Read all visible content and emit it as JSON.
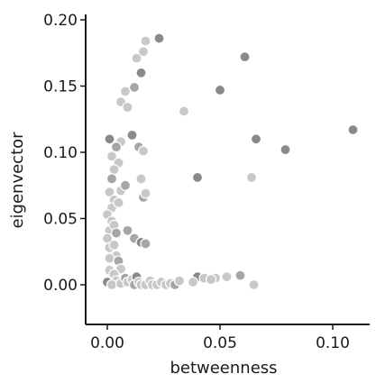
{
  "chart_data": {
    "type": "scatter",
    "xlabel": "betweenness",
    "ylabel": "eigenvector",
    "xlim": [
      -0.005,
      0.11
    ],
    "ylim": [
      -0.035,
      0.205
    ],
    "xticks": [
      0.0,
      0.05,
      0.1
    ],
    "xtick_labels": [
      "0.00",
      "0.05",
      "0.10"
    ],
    "yticks": [
      0.0,
      0.05,
      0.1,
      0.15,
      0.2
    ],
    "ytick_labels": [
      "0.00",
      "0.05",
      "0.10",
      "0.15",
      "0.20"
    ],
    "grid": false,
    "colors": {
      "axis": "#1a1a1a",
      "point_light": "#c8c8c8",
      "point_mid": "#a6a6a6",
      "point_dark": "#8a8a8a",
      "point_edge": "#ffffff"
    },
    "points": [
      {
        "x": 0.061,
        "y": 0.172,
        "shade": "dark"
      },
      {
        "x": 0.05,
        "y": 0.147,
        "shade": "dark"
      },
      {
        "x": 0.109,
        "y": 0.117,
        "shade": "dark"
      },
      {
        "x": 0.066,
        "y": 0.11,
        "shade": "dark"
      },
      {
        "x": 0.079,
        "y": 0.102,
        "shade": "dark"
      },
      {
        "x": 0.064,
        "y": 0.081,
        "shade": "light"
      },
      {
        "x": 0.04,
        "y": 0.081,
        "shade": "dark"
      },
      {
        "x": 0.034,
        "y": 0.131,
        "shade": "light"
      },
      {
        "x": 0.023,
        "y": 0.186,
        "shade": "dark"
      },
      {
        "x": 0.017,
        "y": 0.184,
        "shade": "light"
      },
      {
        "x": 0.016,
        "y": 0.176,
        "shade": "light"
      },
      {
        "x": 0.013,
        "y": 0.171,
        "shade": "light"
      },
      {
        "x": 0.015,
        "y": 0.16,
        "shade": "dark"
      },
      {
        "x": 0.012,
        "y": 0.149,
        "shade": "mid"
      },
      {
        "x": 0.008,
        "y": 0.146,
        "shade": "light"
      },
      {
        "x": 0.006,
        "y": 0.138,
        "shade": "light"
      },
      {
        "x": 0.009,
        "y": 0.134,
        "shade": "light"
      },
      {
        "x": 0.011,
        "y": 0.113,
        "shade": "dark"
      },
      {
        "x": 0.014,
        "y": 0.104,
        "shade": "mid"
      },
      {
        "x": 0.016,
        "y": 0.101,
        "shade": "light"
      },
      {
        "x": 0.006,
        "y": 0.108,
        "shade": "light"
      },
      {
        "x": 0.004,
        "y": 0.104,
        "shade": "mid"
      },
      {
        "x": 0.001,
        "y": 0.11,
        "shade": "dark"
      },
      {
        "x": 0.002,
        "y": 0.097,
        "shade": "light"
      },
      {
        "x": 0.005,
        "y": 0.092,
        "shade": "light"
      },
      {
        "x": 0.003,
        "y": 0.087,
        "shade": "light"
      },
      {
        "x": 0.002,
        "y": 0.08,
        "shade": "mid"
      },
      {
        "x": 0.001,
        "y": 0.07,
        "shade": "light"
      },
      {
        "x": 0.003,
        "y": 0.064,
        "shade": "light"
      },
      {
        "x": 0.002,
        "y": 0.058,
        "shade": "light"
      },
      {
        "x": 0.005,
        "y": 0.062,
        "shade": "light"
      },
      {
        "x": 0.006,
        "y": 0.071,
        "shade": "light"
      },
      {
        "x": 0.008,
        "y": 0.075,
        "shade": "mid"
      },
      {
        "x": 0.015,
        "y": 0.08,
        "shade": "light"
      },
      {
        "x": 0.016,
        "y": 0.066,
        "shade": "mid"
      },
      {
        "x": 0.017,
        "y": 0.069,
        "shade": "light"
      },
      {
        "x": 0.0,
        "y": 0.053,
        "shade": "light"
      },
      {
        "x": 0.002,
        "y": 0.048,
        "shade": "light"
      },
      {
        "x": 0.001,
        "y": 0.041,
        "shade": "light"
      },
      {
        "x": 0.003,
        "y": 0.045,
        "shade": "light"
      },
      {
        "x": 0.004,
        "y": 0.039,
        "shade": "mid"
      },
      {
        "x": 0.009,
        "y": 0.041,
        "shade": "mid"
      },
      {
        "x": 0.0,
        "y": 0.035,
        "shade": "light"
      },
      {
        "x": 0.001,
        "y": 0.028,
        "shade": "light"
      },
      {
        "x": 0.012,
        "y": 0.035,
        "shade": "mid"
      },
      {
        "x": 0.015,
        "y": 0.032,
        "shade": "dark"
      },
      {
        "x": 0.017,
        "y": 0.031,
        "shade": "mid"
      },
      {
        "x": 0.003,
        "y": 0.03,
        "shade": "light"
      },
      {
        "x": 0.004,
        "y": 0.022,
        "shade": "light"
      },
      {
        "x": 0.001,
        "y": 0.02,
        "shade": "light"
      },
      {
        "x": 0.005,
        "y": 0.018,
        "shade": "mid"
      },
      {
        "x": 0.006,
        "y": 0.012,
        "shade": "light"
      },
      {
        "x": 0.001,
        "y": 0.011,
        "shade": "light"
      },
      {
        "x": 0.003,
        "y": 0.008,
        "shade": "light"
      },
      {
        "x": 0.004,
        "y": 0.003,
        "shade": "light"
      },
      {
        "x": 0.0,
        "y": 0.002,
        "shade": "dark"
      },
      {
        "x": 0.002,
        "y": 0.0,
        "shade": "light"
      },
      {
        "x": 0.006,
        "y": 0.001,
        "shade": "light"
      },
      {
        "x": 0.008,
        "y": 0.005,
        "shade": "mid"
      },
      {
        "x": 0.009,
        "y": 0.002,
        "shade": "light"
      },
      {
        "x": 0.011,
        "y": 0.004,
        "shade": "light"
      },
      {
        "x": 0.012,
        "y": 0.0,
        "shade": "mid"
      },
      {
        "x": 0.013,
        "y": 0.006,
        "shade": "dark"
      },
      {
        "x": 0.014,
        "y": 0.002,
        "shade": "light"
      },
      {
        "x": 0.015,
        "y": 0.0,
        "shade": "light"
      },
      {
        "x": 0.017,
        "y": 0.0,
        "shade": "light"
      },
      {
        "x": 0.019,
        "y": 0.003,
        "shade": "light"
      },
      {
        "x": 0.02,
        "y": 0.0,
        "shade": "light"
      },
      {
        "x": 0.022,
        "y": 0.0,
        "shade": "light"
      },
      {
        "x": 0.024,
        "y": 0.002,
        "shade": "light"
      },
      {
        "x": 0.026,
        "y": 0.0,
        "shade": "light"
      },
      {
        "x": 0.028,
        "y": 0.001,
        "shade": "light"
      },
      {
        "x": 0.03,
        "y": 0.0,
        "shade": "mid"
      },
      {
        "x": 0.032,
        "y": 0.003,
        "shade": "light"
      },
      {
        "x": 0.04,
        "y": 0.006,
        "shade": "dark"
      },
      {
        "x": 0.043,
        "y": 0.005,
        "shade": "light"
      },
      {
        "x": 0.048,
        "y": 0.005,
        "shade": "light"
      },
      {
        "x": 0.053,
        "y": 0.006,
        "shade": "light"
      },
      {
        "x": 0.059,
        "y": 0.007,
        "shade": "mid"
      },
      {
        "x": 0.046,
        "y": 0.004,
        "shade": "light"
      },
      {
        "x": 0.038,
        "y": 0.002,
        "shade": "light"
      },
      {
        "x": 0.065,
        "y": 0.0,
        "shade": "light"
      }
    ]
  }
}
